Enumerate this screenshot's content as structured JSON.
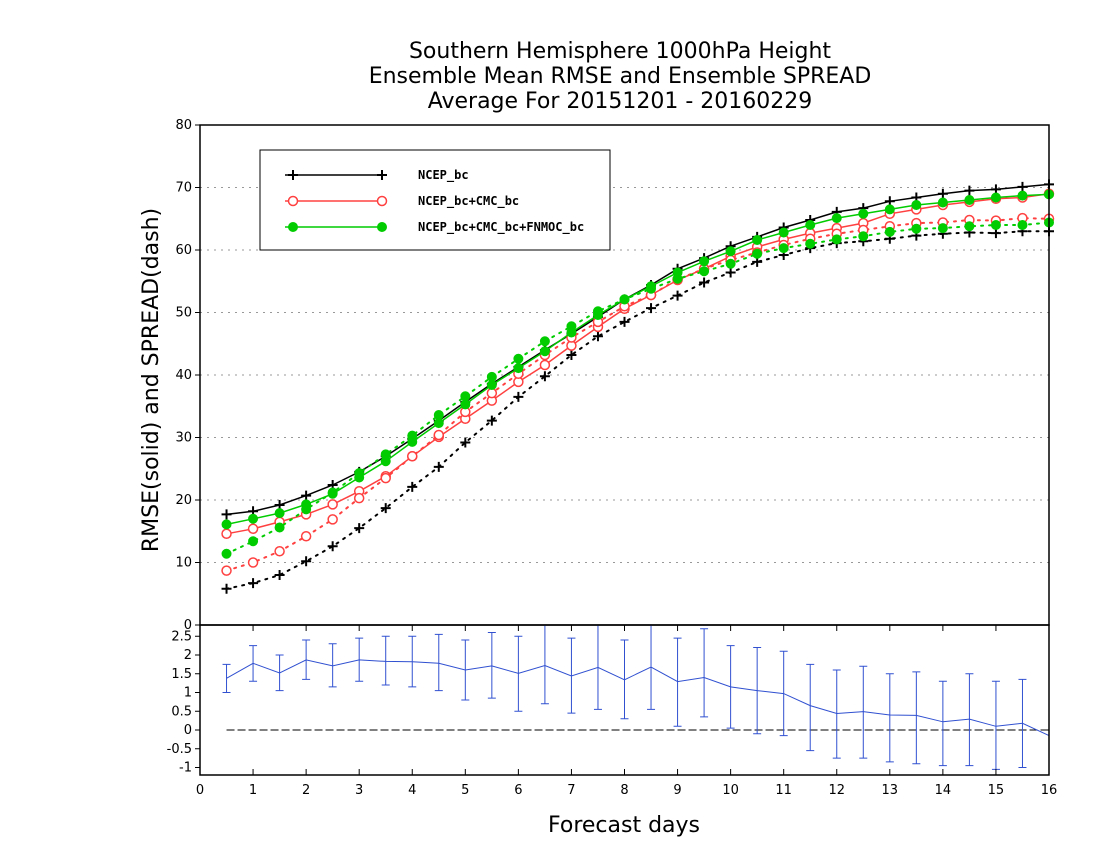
{
  "chart_data": [
    {
      "type": "line",
      "title": [
        "Southern Hemisphere 1000hPa Height",
        "Ensemble Mean RMSE and Ensemble SPREAD",
        "Average For 20151201 - 20160229"
      ],
      "xlabel": "Forecast days",
      "ylabel": "RMSE(solid) and SPREAD(dash)",
      "xlim": [
        0,
        16
      ],
      "ylim": [
        0,
        80
      ],
      "xticks": [
        "0",
        "1",
        "2",
        "3",
        "4",
        "5",
        "6",
        "7",
        "8",
        "9",
        "10",
        "11",
        "12",
        "13",
        "14",
        "15",
        "16"
      ],
      "yticks": [
        "0",
        "10",
        "20",
        "30",
        "40",
        "50",
        "60",
        "70",
        "80"
      ],
      "grid": true,
      "legend_position": "top-left",
      "x": [
        0.5,
        1,
        1.5,
        2,
        2.5,
        3,
        3.5,
        4,
        4.5,
        5,
        5.5,
        6,
        6.5,
        7,
        7.5,
        8,
        8.5,
        9,
        9.5,
        10,
        10.5,
        11,
        11.5,
        12,
        12.5,
        13,
        13.5,
        14,
        14.5,
        15,
        15.5,
        16
      ],
      "series": [
        {
          "name": "NCEP_bc",
          "color": "#000000",
          "marker": "plus",
          "rmse": [
            17.7,
            18.2,
            19.2,
            20.7,
            22.4,
            24.5,
            27.0,
            29.8,
            32.7,
            35.7,
            38.6,
            41.3,
            44.0,
            46.6,
            49.3,
            52.1,
            54.4,
            57.0,
            58.7,
            60.6,
            62.1,
            63.6,
            64.8,
            66.1,
            66.7,
            67.8,
            68.4,
            69.0,
            69.5,
            69.7,
            70.1,
            70.5
          ],
          "spread": [
            5.8,
            6.7,
            8.0,
            10.2,
            12.6,
            15.5,
            18.7,
            22.1,
            25.3,
            29.2,
            32.7,
            36.5,
            39.8,
            43.2,
            46.2,
            48.5,
            50.7,
            52.7,
            54.8,
            56.4,
            58.1,
            59.2,
            60.3,
            61.1,
            61.4,
            61.8,
            62.3,
            62.6,
            62.8,
            62.7,
            63.0,
            63.0
          ]
        },
        {
          "name": "NCEP_bc+CMC_bc",
          "color": "#ff4040",
          "marker": "open-circle",
          "rmse": [
            14.6,
            15.4,
            16.5,
            17.7,
            19.3,
            21.4,
            23.8,
            27.0,
            30.1,
            33.0,
            35.9,
            38.9,
            41.6,
            44.7,
            47.7,
            50.6,
            52.8,
            55.2,
            57.0,
            59.0,
            60.5,
            61.7,
            62.7,
            63.5,
            64.3,
            65.8,
            66.5,
            67.2,
            67.7,
            68.2,
            68.4,
            69.0
          ],
          "spread": [
            8.7,
            10.0,
            11.8,
            14.2,
            16.9,
            20.3,
            23.5,
            27.0,
            30.4,
            34.1,
            37.1,
            40.2,
            43.2,
            46.0,
            48.5,
            51.0,
            52.8,
            55.3,
            57.0,
            58.4,
            59.6,
            60.8,
            61.8,
            62.6,
            63.2,
            63.8,
            64.3,
            64.4,
            64.8,
            64.7,
            65.1,
            65.0
          ]
        },
        {
          "name": "NCEP_bc+CMC_bc+FNMOC_bc",
          "color": "#00cc00",
          "marker": "filled-circle",
          "rmse": [
            16.1,
            17.0,
            17.9,
            19.3,
            21.0,
            23.6,
            26.2,
            29.3,
            32.3,
            35.3,
            38.4,
            41.1,
            43.8,
            46.8,
            49.6,
            52.1,
            54.2,
            56.4,
            58.2,
            59.8,
            61.6,
            62.8,
            64.0,
            65.1,
            65.8,
            66.5,
            67.2,
            67.6,
            68.0,
            68.4,
            68.7,
            68.9
          ],
          "spread": [
            11.4,
            13.4,
            15.6,
            18.5,
            21.2,
            24.3,
            27.3,
            30.3,
            33.6,
            36.6,
            39.7,
            42.6,
            45.4,
            47.8,
            50.2,
            52.1,
            53.8,
            55.4,
            56.6,
            57.8,
            59.4,
            60.3,
            61.0,
            61.7,
            62.2,
            62.9,
            63.4,
            63.5,
            63.8,
            64.0,
            64.0,
            64.4
          ]
        }
      ]
    },
    {
      "type": "line",
      "xlim": [
        0,
        16
      ],
      "ylim": [
        -1.2,
        2.8
      ],
      "yticks": [
        "2.5",
        "2",
        "1.5",
        "1",
        "0.5",
        "0",
        "-0.5",
        "-1"
      ],
      "series": [
        {
          "name": "",
          "color": "#3050d0",
          "x": [
            0.5,
            1,
            1.5,
            2,
            2.5,
            3,
            3.5,
            4,
            4.5,
            5,
            5.5,
            6,
            6.5,
            7,
            7.5,
            8,
            8.5,
            9,
            9.5,
            10,
            10.5,
            11,
            11.5,
            12,
            12.5,
            13,
            13.5,
            14,
            14.5,
            15,
            15.5,
            16
          ],
          "values": [
            1.38,
            1.78,
            1.52,
            1.87,
            1.71,
            1.87,
            1.83,
            1.82,
            1.78,
            1.6,
            1.71,
            1.51,
            1.72,
            1.44,
            1.67,
            1.34,
            1.68,
            1.29,
            1.4,
            1.15,
            1.05,
            0.97,
            0.65,
            0.44,
            0.49,
            0.4,
            0.39,
            0.22,
            0.29,
            0.1,
            0.18,
            -0.15
          ],
          "err_low": [
            1.0,
            1.3,
            1.05,
            1.35,
            1.15,
            1.3,
            1.2,
            1.15,
            1.05,
            0.8,
            0.85,
            0.5,
            0.7,
            0.45,
            0.55,
            0.3,
            0.55,
            0.1,
            0.35,
            0.05,
            -0.1,
            -0.15,
            -0.55,
            -0.75,
            -0.75,
            -0.85,
            -0.9,
            -0.95,
            -0.95,
            -1.05,
            -1.0,
            -0.15
          ],
          "err_high": [
            1.75,
            2.25,
            2.0,
            2.4,
            2.3,
            2.45,
            2.5,
            2.5,
            2.55,
            2.4,
            2.6,
            2.5,
            2.9,
            2.45,
            2.8,
            2.4,
            2.8,
            2.45,
            2.7,
            2.25,
            2.2,
            2.1,
            1.75,
            1.6,
            1.7,
            1.5,
            1.55,
            1.3,
            1.5,
            1.3,
            1.35,
            -0.15
          ]
        }
      ],
      "reference_line": 0
    }
  ]
}
